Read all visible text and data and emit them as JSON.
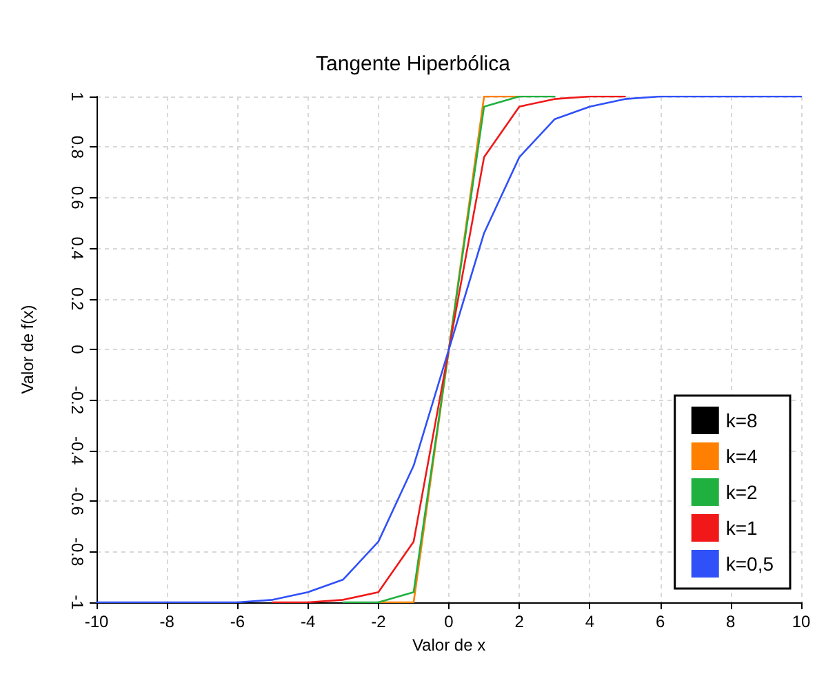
{
  "chart_data": {
    "type": "line",
    "title": "Tangente Hiperbólica",
    "xlabel": "Valor de x",
    "ylabel": "Valor de f(x)",
    "x": [
      -10,
      -9,
      -8,
      -7,
      -6,
      -5,
      -4,
      -3,
      -2,
      -1,
      0,
      1,
      2,
      3,
      4,
      5,
      6,
      7,
      8,
      9,
      10
    ],
    "series": [
      {
        "name": "k=8",
        "color": "#000000",
        "values": [
          null,
          null,
          null,
          null,
          null,
          null,
          null,
          null,
          null,
          null,
          null,
          null,
          null,
          null,
          null,
          null,
          null,
          null,
          null,
          null,
          null
        ]
      },
      {
        "name": "k=4",
        "color": "#ff7f00",
        "values": [
          null,
          null,
          null,
          null,
          null,
          null,
          null,
          null,
          -1,
          -1,
          0,
          1,
          1,
          null,
          null,
          null,
          null,
          null,
          null,
          null,
          null
        ]
      },
      {
        "name": "k=2",
        "color": "#1fb040",
        "values": [
          null,
          null,
          null,
          null,
          null,
          null,
          null,
          -1,
          -1,
          -0.96,
          0,
          0.96,
          1,
          1,
          null,
          null,
          null,
          null,
          null,
          null,
          null
        ]
      },
      {
        "name": "k=1",
        "color": "#f01818",
        "values": [
          null,
          null,
          null,
          null,
          null,
          -1,
          -1,
          -0.99,
          -0.96,
          -0.76,
          0,
          0.76,
          0.96,
          0.99,
          1,
          1,
          null,
          null,
          null,
          null,
          null
        ]
      },
      {
        "name": "k=0,5",
        "color": "#3050f8",
        "values": [
          -1,
          -1,
          -1,
          -1,
          -1,
          -0.99,
          -0.96,
          -0.91,
          -0.76,
          -0.46,
          0,
          0.46,
          0.76,
          0.91,
          0.96,
          0.99,
          1,
          1,
          1,
          1,
          1
        ]
      }
    ],
    "xlim": [
      -10,
      10
    ],
    "xticks": [
      -10,
      -8,
      -6,
      -4,
      -2,
      0,
      2,
      4,
      6,
      8,
      10
    ],
    "ylim": [
      -1,
      1
    ],
    "yticks": [
      -1,
      -0.8,
      -0.6,
      -0.4,
      -0.2,
      0,
      0.2,
      0.4,
      0.6,
      0.8,
      1
    ],
    "grid": true,
    "legend": "bottom right",
    "marker": "none",
    "line_style": "solid"
  }
}
